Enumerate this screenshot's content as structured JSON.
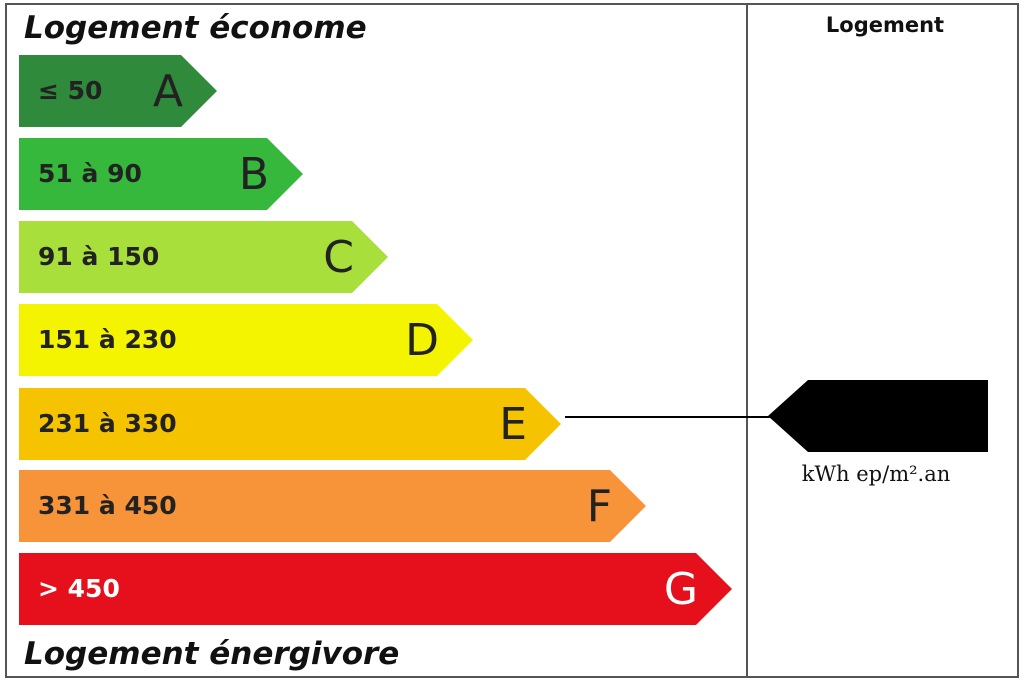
{
  "header": {
    "title": "Logement économe",
    "column": "Logement"
  },
  "bands": [
    {
      "range": "≤ 50",
      "letter": "A"
    },
    {
      "range": "51 à 90",
      "letter": "B"
    },
    {
      "range": "91 à 150",
      "letter": "C"
    },
    {
      "range": "151 à 230",
      "letter": "D"
    },
    {
      "range": "231 à 330",
      "letter": "E"
    },
    {
      "range": "331 à 450",
      "letter": "F"
    },
    {
      "range": "> 450",
      "letter": "G"
    }
  ],
  "footer": {
    "title": "Logement énergivore"
  },
  "indicator": {
    "unit": "kWh ep/m².an"
  }
}
